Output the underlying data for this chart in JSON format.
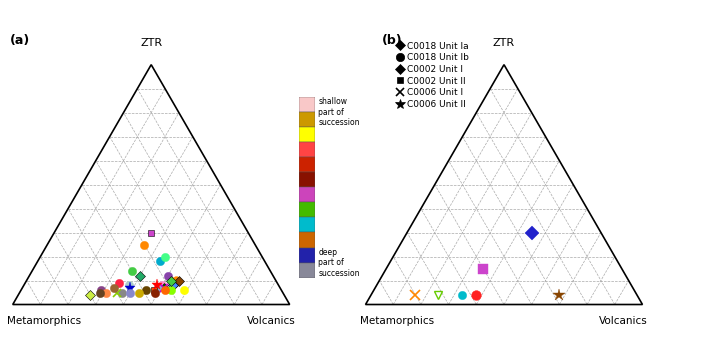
{
  "title_a": "(a)",
  "title_b": "(b)",
  "corner_top": "ZTR",
  "corner_bl_a": "Metamorphics",
  "corner_br": "Volcanics",
  "corner_bl_b": "Metamorphics",
  "colorbar_colors_top_to_bottom": [
    "#f9c8c8",
    "#cc9900",
    "#ffff00",
    "#ff4444",
    "#cc2200",
    "#881100",
    "#cc44bb",
    "#44bb00",
    "#00bbcc",
    "#cc6600",
    "#2222aa",
    "#888899"
  ],
  "samples_a": [
    {
      "ZTR": 0.3,
      "M": 0.35,
      "V": 0.35,
      "color": "#cc44cc",
      "marker": "s",
      "ms": 5
    },
    {
      "ZTR": 0.25,
      "M": 0.4,
      "V": 0.35,
      "color": "#ff8800",
      "marker": "o",
      "ms": 6
    },
    {
      "ZTR": 0.18,
      "M": 0.38,
      "V": 0.44,
      "color": "#00aacc",
      "marker": "o",
      "ms": 6
    },
    {
      "ZTR": 0.14,
      "M": 0.5,
      "V": 0.36,
      "color": "#44cc44",
      "marker": "o",
      "ms": 6
    },
    {
      "ZTR": 0.12,
      "M": 0.38,
      "V": 0.5,
      "color": "#8844aa",
      "marker": "o",
      "ms": 6
    },
    {
      "ZTR": 0.1,
      "M": 0.36,
      "V": 0.54,
      "color": "#ff8800",
      "marker": "o",
      "ms": 7
    },
    {
      "ZTR": 0.1,
      "M": 0.35,
      "V": 0.55,
      "color": "#884400",
      "marker": "D",
      "ms": 5
    },
    {
      "ZTR": 0.09,
      "M": 0.57,
      "V": 0.34,
      "color": "#ff2244",
      "marker": "o",
      "ms": 6
    },
    {
      "ZTR": 0.08,
      "M": 0.38,
      "V": 0.54,
      "color": "#ff4444",
      "marker": "D",
      "ms": 5
    },
    {
      "ZTR": 0.08,
      "M": 0.54,
      "V": 0.38,
      "color": "#aacccc",
      "marker": "o",
      "ms": 6
    },
    {
      "ZTR": 0.08,
      "M": 0.42,
      "V": 0.5,
      "color": "#ff88cc",
      "marker": "o",
      "ms": 6
    },
    {
      "ZTR": 0.08,
      "M": 0.38,
      "V": 0.54,
      "color": "#4488ff",
      "marker": "D",
      "ms": 5
    },
    {
      "ZTR": 0.07,
      "M": 0.42,
      "V": 0.51,
      "color": "#006600",
      "marker": "D",
      "ms": 5
    },
    {
      "ZTR": 0.07,
      "M": 0.44,
      "V": 0.49,
      "color": "#88aacc",
      "marker": "o",
      "ms": 6
    },
    {
      "ZTR": 0.07,
      "M": 0.42,
      "V": 0.51,
      "color": "#cc00cc",
      "marker": "x",
      "ms": 6
    },
    {
      "ZTR": 0.07,
      "M": 0.54,
      "V": 0.39,
      "color": "#0000cc",
      "marker": "*",
      "ms": 8
    },
    {
      "ZTR": 0.06,
      "M": 0.4,
      "V": 0.54,
      "color": "#88ff00",
      "marker": "o",
      "ms": 6
    },
    {
      "ZTR": 0.06,
      "M": 0.42,
      "V": 0.52,
      "color": "#ff6600",
      "marker": "o",
      "ms": 6
    },
    {
      "ZTR": 0.06,
      "M": 0.46,
      "V": 0.48,
      "color": "#ff4400",
      "marker": "s",
      "ms": 5
    },
    {
      "ZTR": 0.06,
      "M": 0.35,
      "V": 0.59,
      "color": "#ffff00",
      "marker": "o",
      "ms": 6
    },
    {
      "ZTR": 0.06,
      "M": 0.49,
      "V": 0.45,
      "color": "#664400",
      "marker": "o",
      "ms": 6
    },
    {
      "ZTR": 0.06,
      "M": 0.65,
      "V": 0.29,
      "color": "#884488",
      "marker": "o",
      "ms": 6
    },
    {
      "ZTR": 0.05,
      "M": 0.46,
      "V": 0.49,
      "color": "#882200",
      "marker": "o",
      "ms": 6
    },
    {
      "ZTR": 0.05,
      "M": 0.58,
      "V": 0.37,
      "color": "#888888",
      "marker": "o",
      "ms": 6
    },
    {
      "ZTR": 0.05,
      "M": 0.55,
      "V": 0.4,
      "color": "#8888cc",
      "marker": "o",
      "ms": 6
    },
    {
      "ZTR": 0.05,
      "M": 0.6,
      "V": 0.35,
      "color": "#88cc00",
      "marker": "x",
      "ms": 6
    },
    {
      "ZTR": 0.05,
      "M": 0.52,
      "V": 0.43,
      "color": "#ccaa00",
      "marker": "o",
      "ms": 6
    },
    {
      "ZTR": 0.05,
      "M": 0.64,
      "V": 0.31,
      "color": "#ff8844",
      "marker": "o",
      "ms": 6
    },
    {
      "ZTR": 0.05,
      "M": 0.66,
      "V": 0.29,
      "color": "#664422",
      "marker": "o",
      "ms": 6
    },
    {
      "ZTR": 0.08,
      "M": 0.44,
      "V": 0.48,
      "color": "#ff0000",
      "marker": "*",
      "ms": 8
    },
    {
      "ZTR": 0.04,
      "M": 0.7,
      "V": 0.26,
      "color": "#ccee44",
      "marker": "D",
      "ms": 5
    },
    {
      "ZTR": 0.07,
      "M": 0.6,
      "V": 0.33,
      "color": "#996633",
      "marker": "o",
      "ms": 6
    },
    {
      "ZTR": 0.1,
      "M": 0.38,
      "V": 0.52,
      "color": "#44cc44",
      "marker": "D",
      "ms": 5
    },
    {
      "ZTR": 0.12,
      "M": 0.48,
      "V": 0.4,
      "color": "#22aa66",
      "marker": "D",
      "ms": 5
    },
    {
      "ZTR": 0.2,
      "M": 0.35,
      "V": 0.45,
      "color": "#44ff88",
      "marker": "o",
      "ms": 6
    }
  ],
  "samples_b": [
    {
      "ZTR": 0.3,
      "M": 0.25,
      "V": 0.45,
      "color": "#2222cc",
      "marker": "D",
      "ms": 7
    },
    {
      "ZTR": 0.15,
      "M": 0.5,
      "V": 0.35,
      "color": "#cc44cc",
      "marker": "s",
      "ms": 7
    },
    {
      "ZTR": 0.04,
      "M": 0.28,
      "V": 0.68,
      "color": "#884400",
      "marker": "*",
      "ms": 9
    },
    {
      "ZTR": 0.04,
      "M": 0.58,
      "V": 0.38,
      "color": "#ff2222",
      "marker": "o",
      "ms": 7
    },
    {
      "ZTR": 0.04,
      "M": 0.63,
      "V": 0.33,
      "color": "#00bbcc",
      "marker": "o",
      "ms": 6
    },
    {
      "ZTR": 0.04,
      "M": 0.72,
      "V": 0.24,
      "color": "#66cc00",
      "marker": "v",
      "ms": 6
    },
    {
      "ZTR": 0.04,
      "M": 0.8,
      "V": 0.16,
      "color": "#ff8800",
      "marker": "x",
      "ms": 7
    }
  ]
}
